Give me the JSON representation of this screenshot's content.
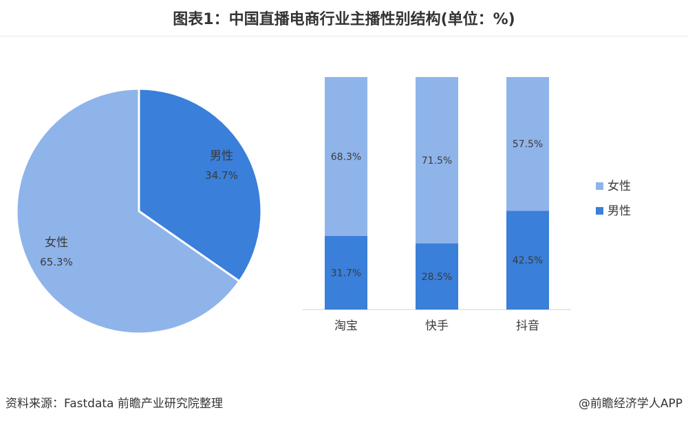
{
  "title": "图表1：中国直播电商行业主播性别结构(单位：%)",
  "footer": {
    "source": "资料来源：Fastdata 前瞻产业研究院整理",
    "credit": "@前瞻经济学人APP"
  },
  "colors": {
    "female": "#8fb4ea",
    "male": "#3a7fd9"
  },
  "chart_data": [
    {
      "type": "pie",
      "slices": [
        {
          "label": "男性",
          "value": 34.7,
          "display": "34.7%"
        },
        {
          "label": "女性",
          "value": 65.3,
          "display": "65.3%"
        }
      ]
    },
    {
      "type": "bar",
      "stacked": true,
      "categories": [
        "淘宝",
        "快手",
        "抖音"
      ],
      "series": [
        {
          "name": "女性",
          "values": [
            68.3,
            71.5,
            57.5
          ],
          "labels": [
            "68.3%",
            "71.5%",
            "57.5%"
          ]
        },
        {
          "name": "男性",
          "values": [
            31.7,
            28.5,
            42.5
          ],
          "labels": [
            "31.7%",
            "28.5%",
            "42.5%"
          ]
        }
      ],
      "legend_position": "right"
    }
  ]
}
